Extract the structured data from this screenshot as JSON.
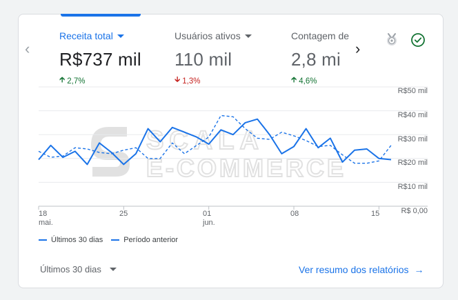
{
  "metrics": [
    {
      "label": "Receita total",
      "value": "R$737 mil",
      "change": "2,7%",
      "direction": "up"
    },
    {
      "label": "Usuários ativos",
      "value": "110 mil",
      "change": "1,3%",
      "direction": "down"
    },
    {
      "label": "Contagem de",
      "value": "2,8 mi",
      "change": "4,6%",
      "direction": "up"
    }
  ],
  "icons": {
    "prev": "chevron-left-icon",
    "next": "chevron-right-icon",
    "insights": "insights-badge-icon",
    "status": "check-circle-icon"
  },
  "colors": {
    "accent": "#1a73e8",
    "positive": "#137333",
    "negative": "#c5221f"
  },
  "watermark": {
    "line1": "SCALA",
    "line2": "E-COMMERCE"
  },
  "chart_data": {
    "type": "line",
    "title": "",
    "x": [
      "18 mai.",
      "19",
      "20",
      "21",
      "22",
      "23",
      "24",
      "25",
      "26",
      "27",
      "28",
      "29",
      "30",
      "31",
      "01 jun.",
      "02",
      "03",
      "04",
      "05",
      "06",
      "07",
      "08",
      "09",
      "10",
      "11",
      "12",
      "13",
      "14",
      "15",
      "16"
    ],
    "x_tick_labels": [
      {
        "day": "18",
        "month": "mai.",
        "index": 0
      },
      {
        "day": "25",
        "month": "",
        "index": 7
      },
      {
        "day": "01",
        "month": "jun.",
        "index": 14
      },
      {
        "day": "08",
        "month": "",
        "index": 21
      },
      {
        "day": "15",
        "month": "",
        "index": 28
      }
    ],
    "y_ticks": [
      "R$ 0,00",
      "R$10 mil",
      "R$20 mil",
      "R$30 mil",
      "R$40 mil",
      "R$50 mil"
    ],
    "ylim": [
      0,
      50
    ],
    "series": [
      {
        "name": "Últimos 30 dias",
        "style": "solid",
        "values": [
          19.5,
          25.5,
          20.5,
          23,
          17.5,
          26.5,
          22.5,
          17.5,
          22,
          32.5,
          27,
          33,
          31,
          29,
          26,
          32,
          30,
          35,
          36.5,
          30,
          22,
          25,
          32.5,
          24.5,
          28.5,
          18.5,
          23.5,
          24,
          20,
          19.5
        ]
      },
      {
        "name": "Período anterior",
        "style": "dashed",
        "values": [
          23,
          20.5,
          21,
          24.5,
          24,
          22.5,
          22,
          23.5,
          24.5,
          20,
          20,
          26.5,
          22,
          25.5,
          29,
          38,
          37.5,
          32.5,
          28.5,
          28,
          31,
          29.5,
          27.5,
          25,
          25.5,
          21.5,
          18,
          18,
          19,
          25.5
        ]
      }
    ],
    "grid": true,
    "legend_position": "bottom-left"
  },
  "footer": {
    "date_range": "Últimos 30 dias",
    "report_link": "Ver resumo dos relatórios"
  }
}
